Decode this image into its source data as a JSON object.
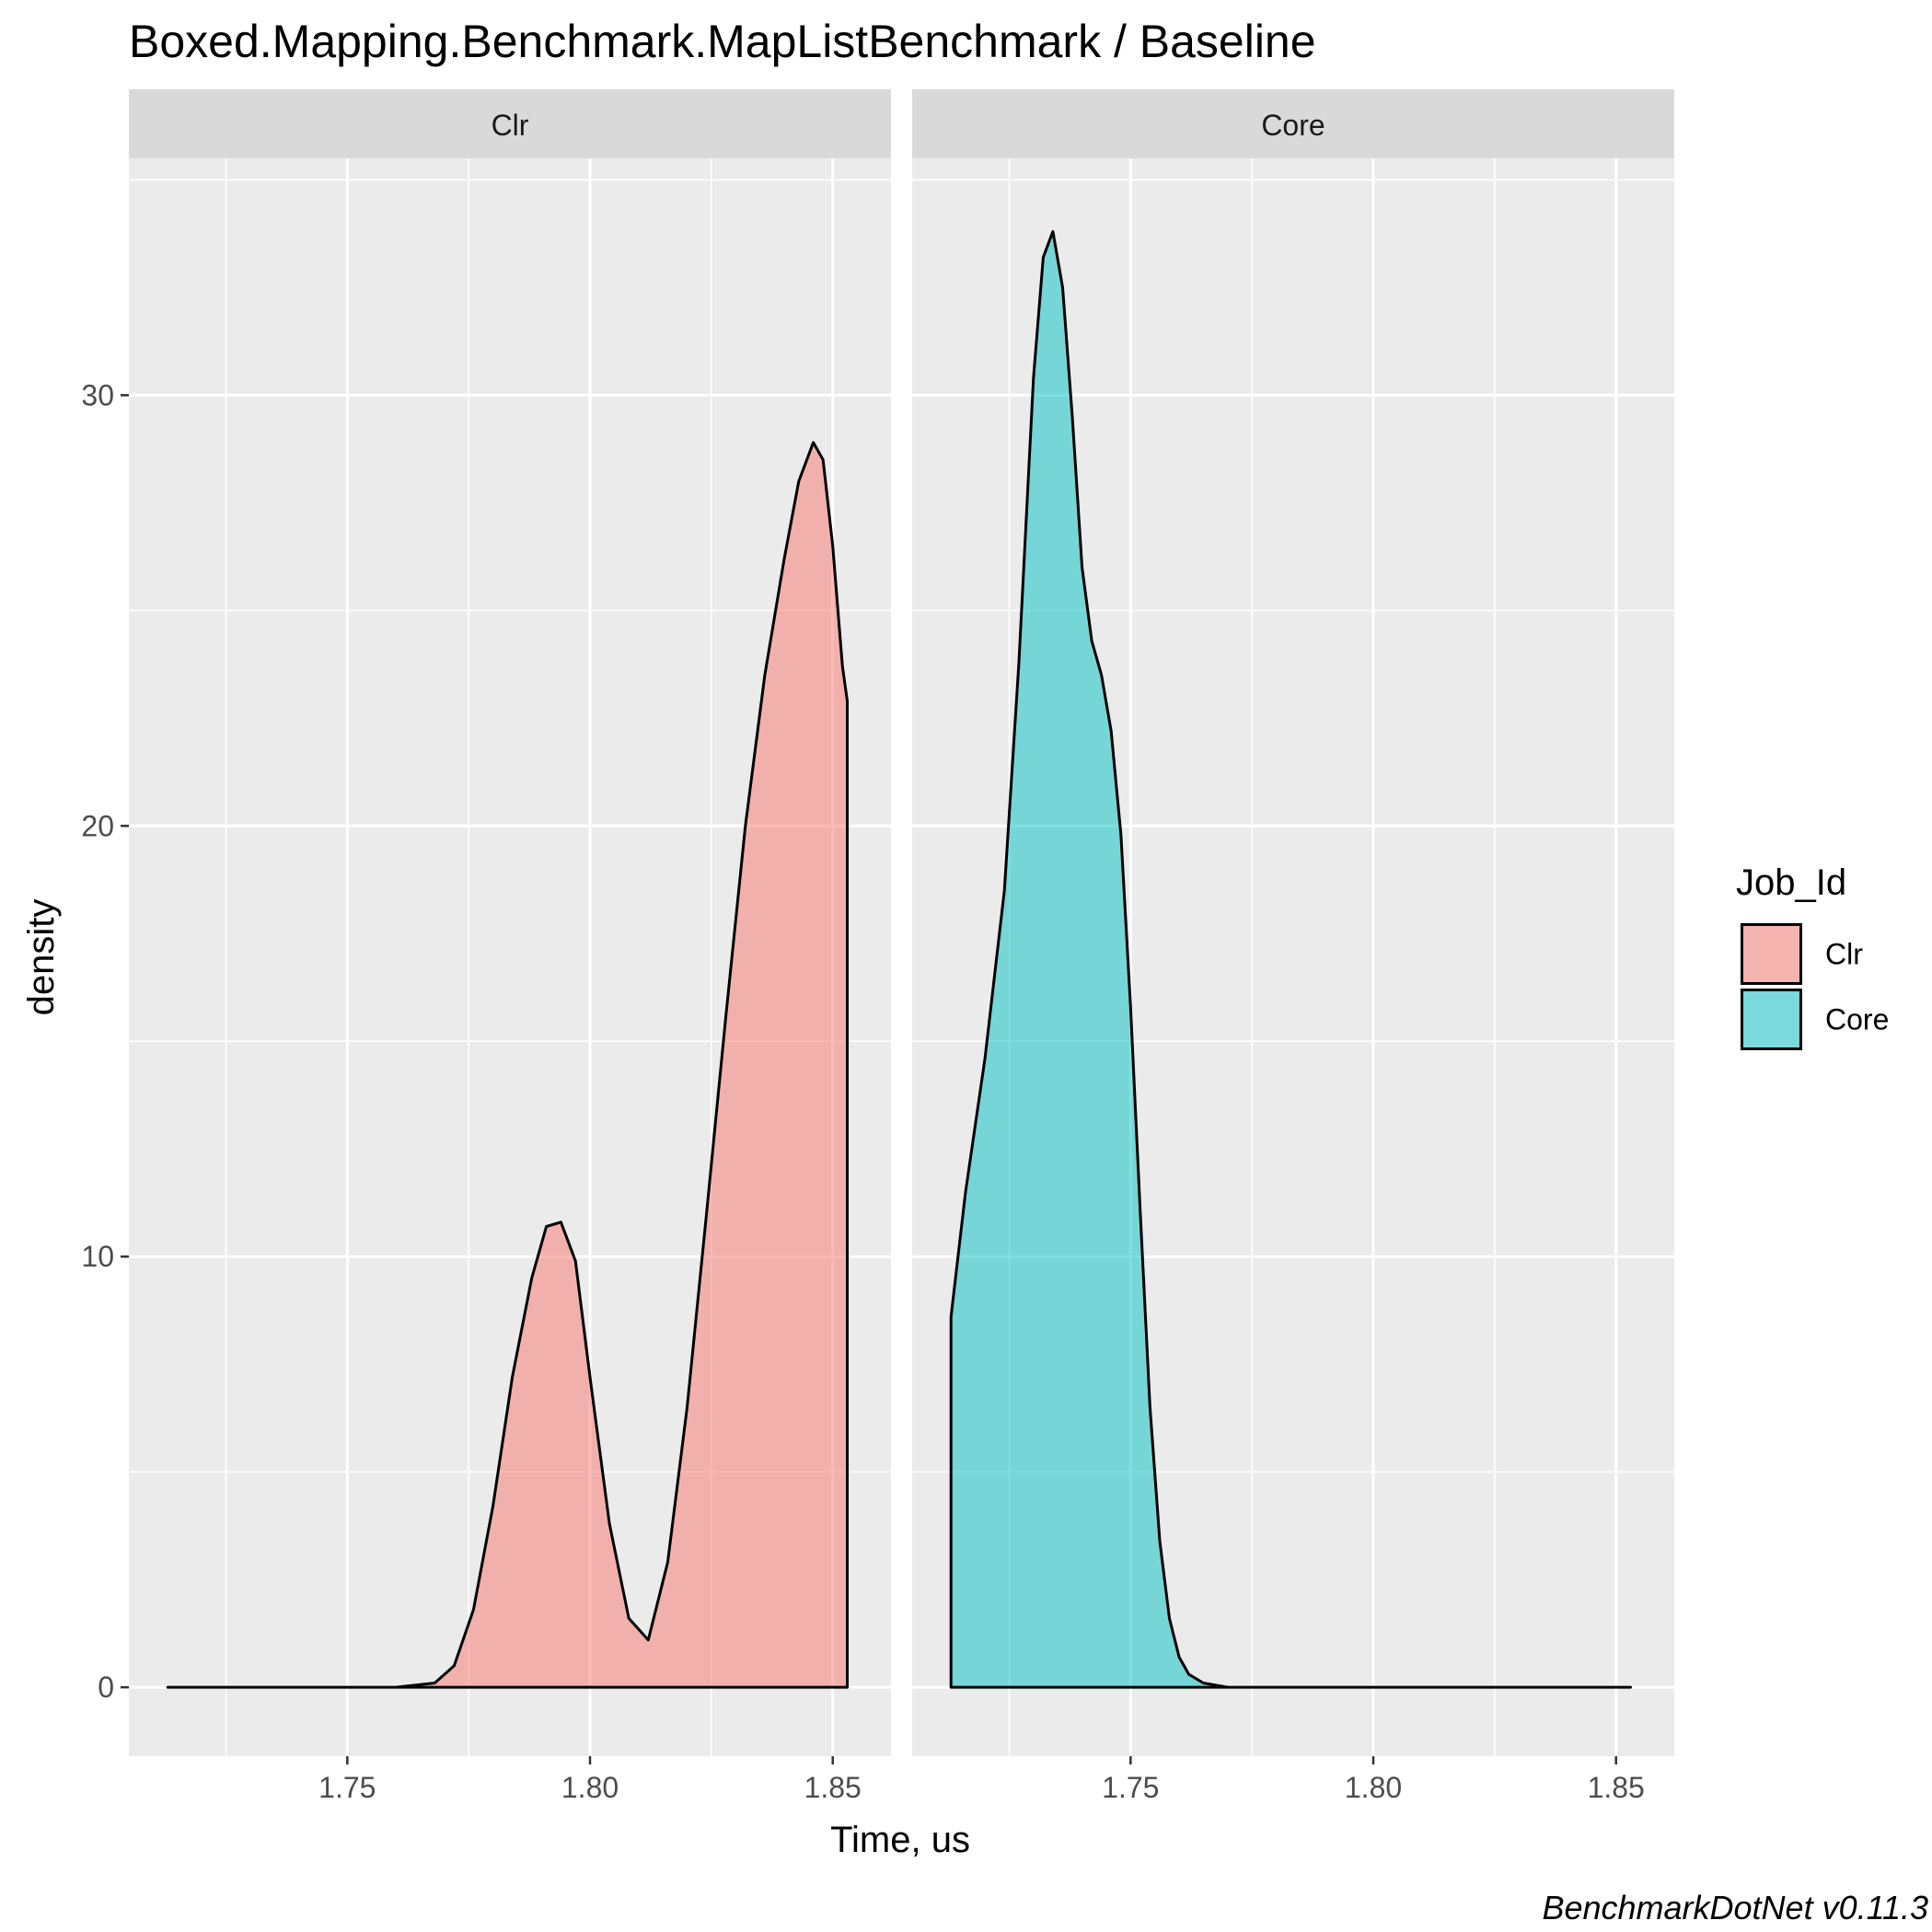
{
  "chart_data": {
    "type": "area",
    "subtype": "density",
    "title": "Boxed.Mapping.Benchmark.MapListBenchmark / Baseline",
    "xlabel": "Time, us",
    "ylabel": "density",
    "caption": "BenchmarkDotNet v0.11.3",
    "facet_by": "Job_Id",
    "xlim": [
      1.705,
      1.862
    ],
    "ylim": [
      -1.6,
      35.5
    ],
    "x_ticks": [
      1.75,
      1.8,
      1.85
    ],
    "x_tick_labels": [
      "1.75",
      "1.80",
      "1.85"
    ],
    "y_ticks": [
      0,
      10,
      20,
      30
    ],
    "y_tick_labels": [
      "0",
      "10",
      "20",
      "30"
    ],
    "grid": true,
    "legend": {
      "title": "Job_Id",
      "position": "right",
      "items": [
        {
          "label": "Clr",
          "color": "#F8766D"
        },
        {
          "label": "Core",
          "color": "#00BFC4"
        }
      ]
    },
    "panels": [
      {
        "strip_label": "Clr",
        "series_name": "Clr",
        "fill": "#F8766D",
        "x": [
          1.713,
          1.74,
          1.76,
          1.768,
          1.772,
          1.776,
          1.78,
          1.784,
          1.788,
          1.791,
          1.794,
          1.797,
          1.8,
          1.804,
          1.808,
          1.812,
          1.816,
          1.82,
          1.824,
          1.828,
          1.832,
          1.836,
          1.84,
          1.843,
          1.846,
          1.848,
          1.85,
          1.852,
          1.853,
          1.853
        ],
        "y": [
          0,
          0,
          0,
          0.1,
          0.5,
          1.8,
          4.2,
          7.2,
          9.5,
          10.7,
          10.8,
          9.9,
          7.2,
          3.8,
          1.6,
          1.1,
          2.9,
          6.5,
          11.0,
          15.6,
          20.0,
          23.5,
          26.2,
          28.0,
          28.9,
          28.5,
          26.5,
          23.7,
          22.9,
          0
        ]
      },
      {
        "strip_label": "Core",
        "series_name": "Core",
        "fill": "#00BFC4",
        "x": [
          1.713,
          1.713,
          1.716,
          1.72,
          1.724,
          1.727,
          1.73,
          1.732,
          1.734,
          1.736,
          1.738,
          1.74,
          1.742,
          1.744,
          1.746,
          1.748,
          1.75,
          1.752,
          1.754,
          1.756,
          1.758,
          1.76,
          1.762,
          1.765,
          1.77,
          1.79,
          1.853
        ],
        "y": [
          0,
          8.6,
          11.5,
          14.6,
          18.5,
          23.8,
          30.4,
          33.2,
          33.8,
          32.5,
          29.5,
          26.0,
          24.3,
          23.5,
          22.2,
          19.8,
          15.8,
          11.0,
          6.5,
          3.4,
          1.6,
          0.7,
          0.3,
          0.1,
          0,
          0,
          0
        ]
      }
    ]
  }
}
